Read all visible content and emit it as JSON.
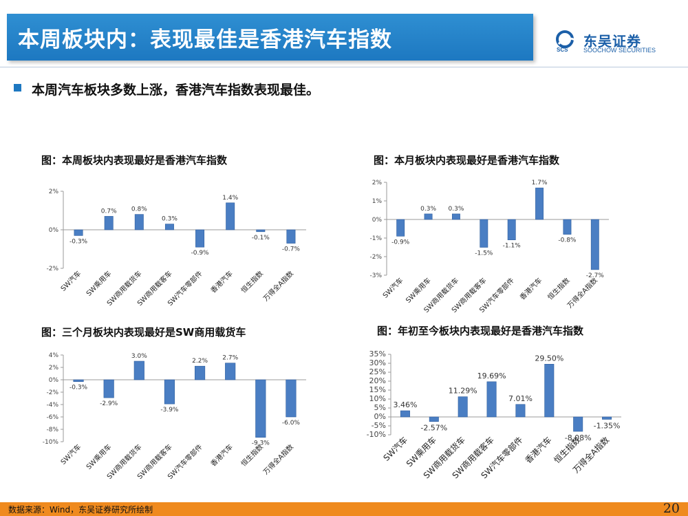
{
  "header": {
    "title": "本周板块内：表现最佳是香港汽车指数",
    "logo_cn": "东吴证券",
    "logo_en": "SOOCHOW SECURITIES",
    "logo_abbr": "SCS"
  },
  "summary": "本周汽车板块多数上涨，香港汽车指数表现最佳。",
  "footer": {
    "source": "数据来源：Wind，东吴证券研究所绘制",
    "page_number": "20"
  },
  "colors": {
    "bar": "#4a7ec3",
    "bar_edge": "#2f5f9e",
    "header": "#1d78c1",
    "footer": "#ef8a1e"
  },
  "chart_data": [
    {
      "type": "bar",
      "title": "图：本周板块内表现最好是香港汽车指数",
      "categories": [
        "SW汽车",
        "SW乘用车",
        "SW商用载货车",
        "SW商用载客车",
        "SW汽车零部件",
        "香港汽车",
        "恒生指数",
        "万得全A指数"
      ],
      "values": [
        -0.3,
        0.7,
        0.8,
        0.3,
        -0.9,
        1.4,
        -0.1,
        -0.7
      ],
      "data_labels": [
        "-0.3%",
        "0.7%",
        "0.8%",
        "0.3%",
        "-0.9%",
        "1.4%",
        "-0.1%",
        "-0.7%"
      ],
      "yticks": [
        2,
        0,
        -2
      ],
      "ytick_labels": [
        "2%",
        "0%",
        "-2%"
      ],
      "ylim": [
        -2,
        2
      ]
    },
    {
      "type": "bar",
      "title": "图：本月板块内表现最好是香港汽车指数",
      "categories": [
        "SW汽车",
        "SW乘用车",
        "SW商用载货车",
        "SW商用载客车",
        "SW汽车零部件",
        "香港汽车",
        "恒生指数",
        "万得全A指数"
      ],
      "values": [
        -0.9,
        0.3,
        0.3,
        -1.5,
        -1.1,
        1.7,
        -0.8,
        -2.7
      ],
      "data_labels": [
        "-0.9%",
        "0.3%",
        "0.3%",
        "-1.5%",
        "-1.1%",
        "1.7%",
        "-0.8%",
        "-2.7%"
      ],
      "yticks": [
        2,
        1,
        0,
        -1,
        -2,
        -3
      ],
      "ytick_labels": [
        "2%",
        "1%",
        "0%",
        "-1%",
        "-2%",
        "-3%"
      ],
      "ylim": [
        -3,
        2
      ]
    },
    {
      "type": "bar",
      "title": "图：三个月板块内表现最好是SW商用载货车",
      "categories": [
        "SW汽车",
        "SW乘用车",
        "SW商用载货车",
        "SW商用载客车",
        "SW汽车零部件",
        "香港汽车",
        "恒生指数",
        "万得全A指数"
      ],
      "values": [
        -0.3,
        -2.9,
        3.0,
        -3.9,
        2.2,
        2.7,
        -9.3,
        -6.0
      ],
      "data_labels": [
        "-0.3%",
        "-2.9%",
        "3.0%",
        "-3.9%",
        "2.2%",
        "2.7%",
        "-9.3%",
        "-6.0%"
      ],
      "yticks": [
        4,
        2,
        0,
        -2,
        -4,
        -6,
        -8,
        -10
      ],
      "ytick_labels": [
        "4%",
        "2%",
        "0%",
        "-2%",
        "-4%",
        "-6%",
        "-8%",
        "-10%"
      ],
      "ylim": [
        -10,
        4
      ]
    },
    {
      "type": "bar",
      "title": "图：年初至今板块内表现最好是香港汽车指数",
      "categories": [
        "SW汽车",
        "SW乘用车",
        "SW商用载货车",
        "SW商用载客车",
        "SW汽车零部件",
        "香港汽车",
        "恒生指数",
        "万得全A指数"
      ],
      "values": [
        3.46,
        -2.57,
        11.29,
        19.69,
        7.01,
        29.5,
        -8.08,
        -1.35
      ],
      "data_labels": [
        "3.46%",
        "-2.57%",
        "11.29%",
        "19.69%",
        "7.01%",
        "29.50%",
        "-8.08%",
        "-1.35%"
      ],
      "yticks": [
        35,
        30,
        25,
        20,
        15,
        10,
        5,
        0,
        -5,
        -10
      ],
      "ytick_labels": [
        "35%",
        "30%",
        "25%",
        "20%",
        "15%",
        "10%",
        "5%",
        "0%",
        "-5%",
        "-10%"
      ],
      "ylim": [
        -10,
        35
      ]
    }
  ]
}
